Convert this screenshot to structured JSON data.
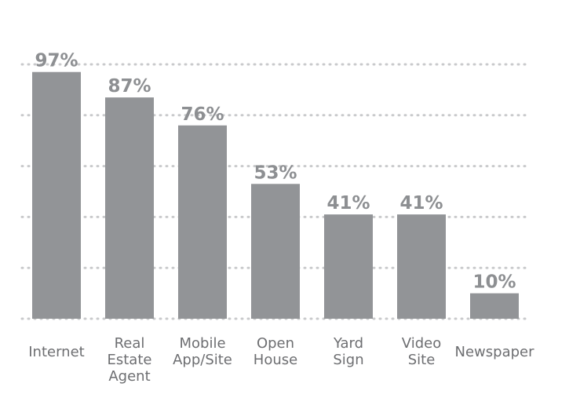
{
  "chart_data": {
    "type": "bar",
    "title": "",
    "xlabel": "",
    "ylabel": "",
    "ylim": [
      0,
      100
    ],
    "grid": true,
    "categories": [
      "Internet",
      "Real Estate Agent",
      "Mobile App/Site",
      "Open House",
      "Yard Sign",
      "Video Site",
      "Newspaper"
    ],
    "category_lines": [
      [
        "Internet"
      ],
      [
        "Real",
        "Estate",
        "Agent"
      ],
      [
        "Mobile",
        "App/Site"
      ],
      [
        "Open",
        "House"
      ],
      [
        "Yard",
        "Sign"
      ],
      [
        "Video",
        "Site"
      ],
      [
        "Newspaper"
      ]
    ],
    "values": [
      97,
      87,
      76,
      53,
      41,
      41,
      10
    ],
    "value_labels": [
      "97%",
      "87%",
      "76%",
      "53%",
      "41%",
      "41%",
      "10%"
    ],
    "bar_color": "#929497",
    "gridline_values": [
      0,
      20,
      40,
      60,
      80,
      100
    ]
  }
}
